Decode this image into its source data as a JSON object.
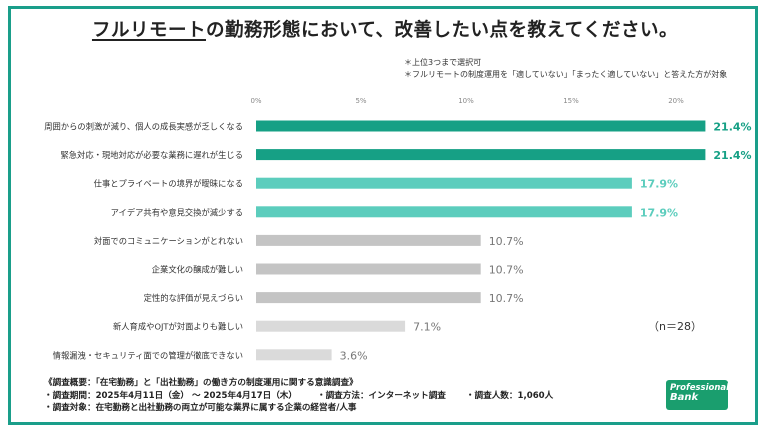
{
  "title": {
    "underlined": "フルリモート",
    "rest": "の勤務形態において、改善したい点を教えてください。"
  },
  "notes": [
    "＊上位3つまで選択可",
    "＊フルリモートの制度運用を「適していない」「まったく適していない」と答えた方が対象"
  ],
  "sample_size_label": "（n＝28）",
  "survey": {
    "line1": "《調査概要：「在宅勤務」と「出社勤務」の働き方の制度運用に関する意識調査》",
    "period": "・調査期間：2025年4月11日（金） 〜 2025年4月17日（木）",
    "method": "・調査方法：インターネット調査",
    "respondents": "・調査人数：1,060人",
    "target": "・調査対象：在宅勤務と出社勤務の両立が可能な業界に属する企業の経営者/人事"
  },
  "logo": {
    "line1": "Professional",
    "line2": "Bank"
  },
  "colors": {
    "dark_teal": "#16a085",
    "light_teal": "#5ccdbd",
    "gray": "#c4c4c4",
    "light_gray": "#dadada",
    "value_dark": "#16a085",
    "value_light": "#5ccdbd",
    "value_gray": "#777777"
  },
  "chart_data": {
    "type": "bar",
    "orientation": "horizontal",
    "categories": [
      "周囲からの刺激が減り、個人の成長実感が乏しくなる",
      "緊急対応・現地対応が必要な業務に遅れが生じる",
      "仕事とプライベートの境界が曖昧になる",
      "アイデア共有や意見交換が減少する",
      "対面でのコミュニケーションがとれない",
      "企業文化の醸成が難しい",
      "定性的な評価が見えづらい",
      "新人育成やOJTが対面よりも難しい",
      "情報漏洩・セキュリティ面での管理が徹底できない"
    ],
    "values": [
      21.4,
      21.4,
      17.9,
      17.9,
      10.7,
      10.7,
      10.7,
      7.1,
      3.6
    ],
    "value_labels": [
      "21.4%",
      "21.4%",
      "17.9%",
      "17.9%",
      "10.7%",
      "10.7%",
      "10.7%",
      "7.1%",
      "3.6%"
    ],
    "bar_tiers": [
      "dark",
      "dark",
      "light",
      "light",
      "gray",
      "gray",
      "gray",
      "lightgray",
      "lightgray"
    ],
    "xlim": [
      0,
      22
    ],
    "ticks": [
      0,
      5,
      10,
      15,
      20
    ],
    "tick_labels": [
      "0%",
      "5%",
      "10%",
      "15%",
      "20%"
    ],
    "grid": false
  }
}
